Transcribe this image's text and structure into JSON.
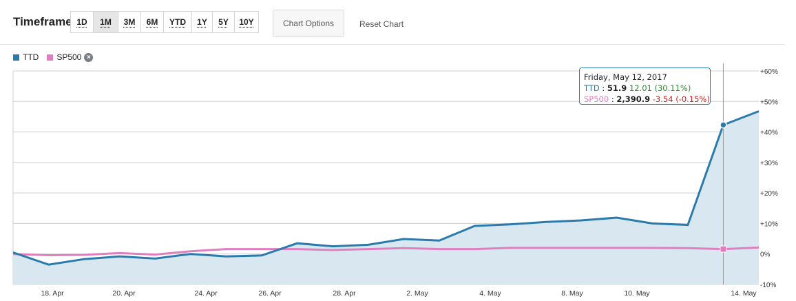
{
  "toolbar": {
    "timeframe_label": "Timeframe",
    "ranges": [
      {
        "label": "1D",
        "active": false
      },
      {
        "label": "1M",
        "active": true
      },
      {
        "label": "3M",
        "active": false
      },
      {
        "label": "6M",
        "active": false
      },
      {
        "label": "YTD",
        "active": false
      },
      {
        "label": "1Y",
        "active": false
      },
      {
        "label": "5Y",
        "active": false
      },
      {
        "label": "10Y",
        "active": false
      }
    ],
    "chart_options_label": "Chart Options",
    "reset_chart_label": "Reset Chart"
  },
  "legend": {
    "items": [
      {
        "name": "TTD",
        "color": "#2a7bab"
      },
      {
        "name": "SP500",
        "color": "#e07fc0"
      }
    ],
    "remove_icon": "close-circle-icon"
  },
  "tooltip": {
    "date": "Friday, May 12, 2017",
    "ttd": {
      "name": "TTD",
      "value": "51.9",
      "change": "12.01 (30.11%)"
    },
    "sp500": {
      "name": "SP500",
      "value": "2,390.9",
      "change": "-3.54 (-0.15%)"
    }
  },
  "chart_data": {
    "type": "area",
    "x_tick_labels": [
      "18. Apr",
      "20. Apr",
      "24. Apr",
      "26. Apr",
      "28. Apr",
      "2. May",
      "4. May",
      "8. May",
      "10. May",
      "14. May"
    ],
    "y_tick_labels": [
      "-10%",
      "0%",
      "+10%",
      "+20%",
      "+30%",
      "+40%",
      "+50%",
      "+60%"
    ],
    "ylim": [
      -10,
      60
    ],
    "y_axis_position": "right",
    "grid": true,
    "legend_position": "top-left",
    "series": [
      {
        "name": "TTD",
        "color": "#2a7bab",
        "fill": "#d9e8f0",
        "values": [
          0.5,
          -3.5,
          -1.7,
          -0.8,
          -1.5,
          0.0,
          -0.8,
          -0.5,
          3.5,
          2.5,
          3.0,
          4.9,
          4.4,
          9.2,
          9.7,
          10.5,
          11.0,
          11.9,
          10.0,
          9.5,
          42.3,
          46.8
        ]
      },
      {
        "name": "SP500",
        "color": "#e07fc0",
        "values": [
          0.0,
          -0.4,
          -0.3,
          0.3,
          -0.2,
          0.9,
          1.6,
          1.6,
          1.6,
          1.3,
          1.6,
          1.9,
          1.6,
          1.6,
          2.0,
          2.0,
          2.0,
          2.0,
          2.0,
          1.9,
          1.6,
          2.1
        ]
      }
    ]
  }
}
